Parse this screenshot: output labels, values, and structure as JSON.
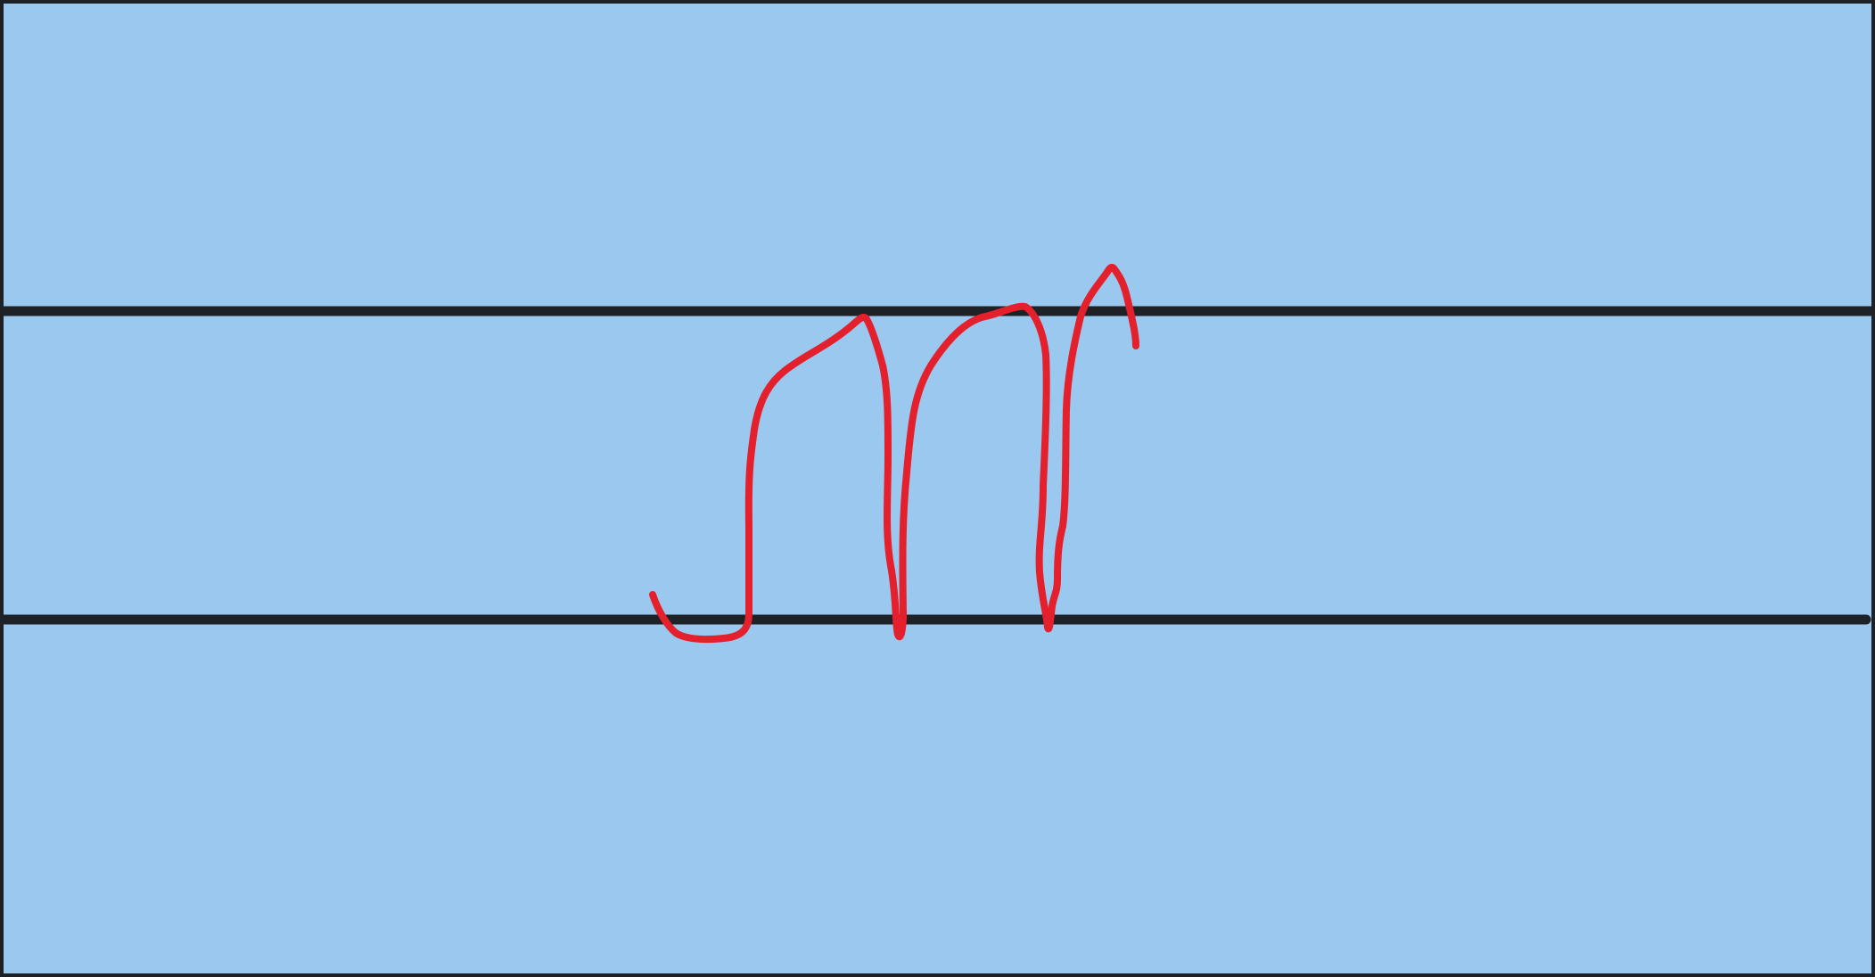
{
  "canvas": {
    "background_color": "#9AC8EE",
    "border_color": "#1E2226",
    "guide_line_color": "#1E2226",
    "ink_color": "#E3202B",
    "guide_lines": [
      "upper-guide-line",
      "baseline-guide-line"
    ]
  },
  "drawing": {
    "description_visible": "",
    "strokes": [
      "handwritten-stroke"
    ]
  }
}
